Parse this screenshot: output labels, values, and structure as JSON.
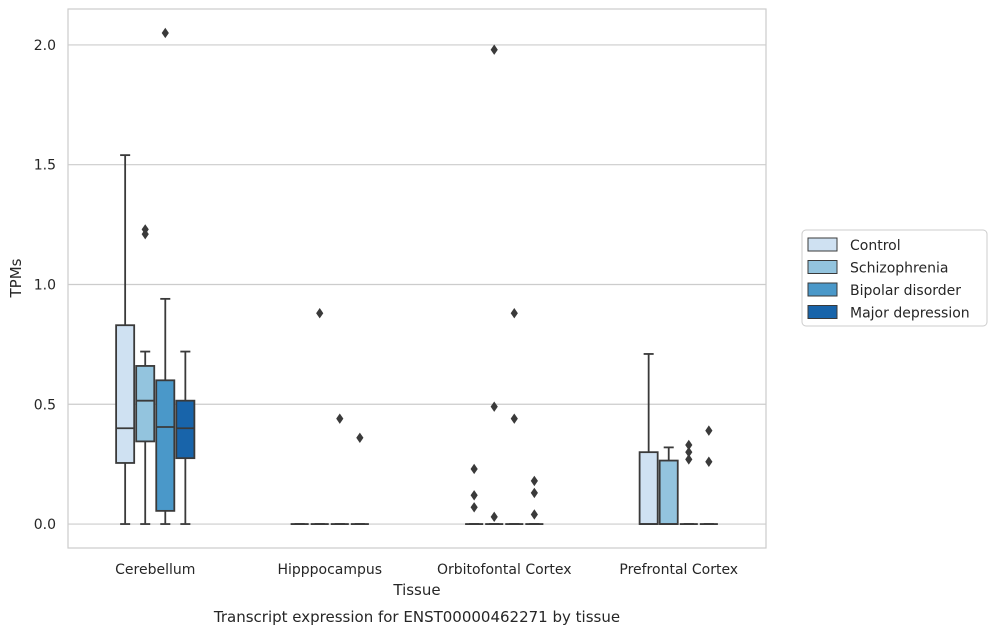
{
  "caption": "Transcript expression for ENST00000462271 by tissue",
  "chart_data": {
    "type": "box",
    "title": "",
    "xlabel": "Tissue",
    "ylabel": "TPMs",
    "ylim": [
      -0.1,
      2.15
    ],
    "yticks": [
      0.0,
      0.5,
      1.0,
      1.5,
      2.0
    ],
    "ytick_labels": [
      "0.0",
      "0.5",
      "1.0",
      "1.5",
      "2.0"
    ],
    "grid": "horizontal",
    "legend_position": "right",
    "categories": [
      "Cerebellum",
      "Hipppocampus",
      "Orbitofontal Cortex",
      "Prefrontal Cortex"
    ],
    "series": [
      {
        "name": "Control",
        "color": "#cfe1f2",
        "boxes": [
          {
            "min": 0.0,
            "q1": 0.255,
            "median": 0.4,
            "q3": 0.83,
            "max": 1.54,
            "outliers": []
          },
          {
            "min": 0.0,
            "q1": 0.0,
            "median": 0.0,
            "q3": 0.0,
            "max": 0.0,
            "outliers": []
          },
          {
            "min": 0.0,
            "q1": 0.0,
            "median": 0.0,
            "q3": 0.0,
            "max": 0.0,
            "outliers": [
              0.23,
              0.12,
              0.07
            ]
          },
          {
            "min": 0.0,
            "q1": 0.0,
            "median": 0.0,
            "q3": 0.3,
            "max": 0.71,
            "outliers": []
          }
        ]
      },
      {
        "name": "Schizophrenia",
        "color": "#93c4de",
        "boxes": [
          {
            "min": 0.0,
            "q1": 0.345,
            "median": 0.515,
            "q3": 0.66,
            "max": 0.72,
            "outliers": [
              1.23,
              1.21
            ]
          },
          {
            "min": 0.0,
            "q1": 0.0,
            "median": 0.0,
            "q3": 0.0,
            "max": 0.0,
            "outliers": [
              0.88
            ]
          },
          {
            "min": 0.0,
            "q1": 0.0,
            "median": 0.0,
            "q3": 0.0,
            "max": 0.0,
            "outliers": [
              1.98,
              0.49,
              0.03
            ]
          },
          {
            "min": 0.0,
            "q1": 0.0,
            "median": 0.0,
            "q3": 0.265,
            "max": 0.32,
            "outliers": []
          }
        ]
      },
      {
        "name": "Bipolar disorder",
        "color": "#4a98c9",
        "boxes": [
          {
            "min": 0.0,
            "q1": 0.055,
            "median": 0.405,
            "q3": 0.6,
            "max": 0.94,
            "outliers": [
              2.05
            ]
          },
          {
            "min": 0.0,
            "q1": 0.0,
            "median": 0.0,
            "q3": 0.0,
            "max": 0.0,
            "outliers": [
              0.44
            ]
          },
          {
            "min": 0.0,
            "q1": 0.0,
            "median": 0.0,
            "q3": 0.0,
            "max": 0.0,
            "outliers": [
              0.88,
              0.44
            ]
          },
          {
            "min": 0.0,
            "q1": 0.0,
            "median": 0.0,
            "q3": 0.0,
            "max": 0.0,
            "outliers": [
              0.33,
              0.3,
              0.27
            ]
          }
        ]
      },
      {
        "name": "Major depression",
        "color": "#1864aa",
        "boxes": [
          {
            "min": 0.0,
            "q1": 0.275,
            "median": 0.4,
            "q3": 0.515,
            "max": 0.72,
            "outliers": []
          },
          {
            "min": 0.0,
            "q1": 0.0,
            "median": 0.0,
            "q3": 0.0,
            "max": 0.0,
            "outliers": [
              0.36
            ]
          },
          {
            "min": 0.0,
            "q1": 0.0,
            "median": 0.0,
            "q3": 0.0,
            "max": 0.0,
            "outliers": [
              0.18,
              0.13,
              0.04
            ]
          },
          {
            "min": 0.0,
            "q1": 0.0,
            "median": 0.0,
            "q3": 0.0,
            "max": 0.0,
            "outliers": [
              0.39,
              0.26
            ]
          }
        ]
      }
    ]
  }
}
